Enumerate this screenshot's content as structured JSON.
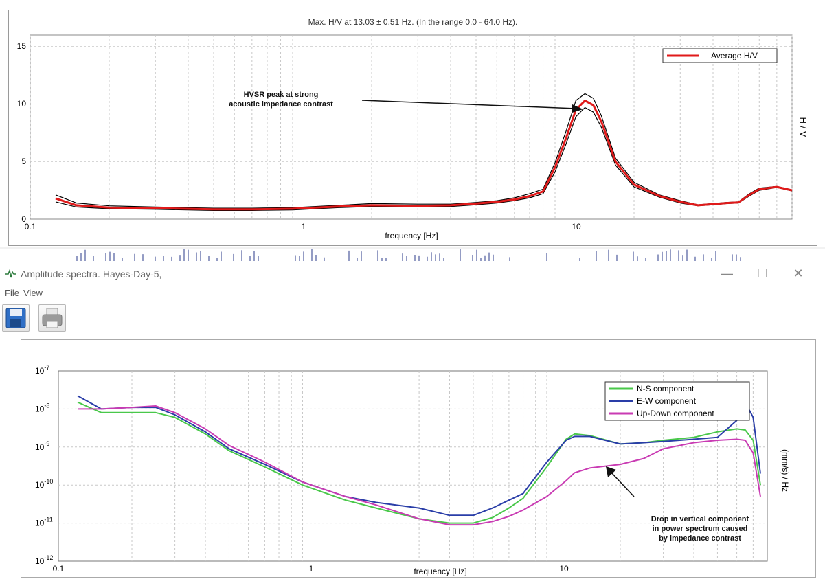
{
  "hv_chart": {
    "title": "Max. H/V at 13.03 ± 0.51 Hz. (In the range 0.0 - 64.0 Hz).",
    "xlabel": "frequency [Hz]",
    "ylabel": "H / V",
    "legend": "Average H/V",
    "annotation": [
      "HVSR  peak at strong",
      "acoustic impedance contrast"
    ],
    "x_ticks": [
      "0.1",
      "1",
      "10"
    ],
    "y_ticks": [
      "0",
      "5",
      "10",
      "15"
    ]
  },
  "window": {
    "title": "Amplitude spectra. Hayes-Day-5,",
    "minimize": "—",
    "maximize": "☐",
    "close": "✕"
  },
  "menu": {
    "file": "File",
    "view": "View"
  },
  "toolbar": {
    "save": "save-icon",
    "print": "print-icon"
  },
  "spectra_chart": {
    "xlabel": "frequency [Hz]",
    "ylabel": "(mm/s) / Hz",
    "x_ticks": [
      "0.1",
      "1",
      "10"
    ],
    "y_ticks": [
      {
        "base": "10",
        "exp": "-7"
      },
      {
        "base": "10",
        "exp": "-8"
      },
      {
        "base": "10",
        "exp": "-9"
      },
      {
        "base": "10",
        "exp": "-10"
      },
      {
        "base": "10",
        "exp": "-11"
      },
      {
        "base": "10",
        "exp": "-12"
      }
    ],
    "annotation": [
      "Drop in vertical component",
      "in power spectrum caused",
      "by impedance contrast"
    ],
    "legend": [
      "N-S component",
      "E-W component",
      "Up-Down component"
    ]
  },
  "chart_data": [
    {
      "type": "line",
      "title": "Max. H/V at 13.03 ± 0.51 Hz. (In the range 0.0 - 64.0 Hz).",
      "xlabel": "frequency [Hz]",
      "ylabel": "H / V",
      "xscale": "log",
      "xlim": [
        0.1,
        80
      ],
      "ylim": [
        0,
        16
      ],
      "grid": true,
      "legend_position": "top-right",
      "x": [
        0.125,
        0.15,
        0.2,
        0.3,
        0.5,
        0.7,
        1,
        1.5,
        2,
        3,
        4,
        5,
        6,
        7,
        8,
        9,
        10,
        11,
        12,
        13,
        14,
        15,
        17,
        20,
        25,
        30,
        35,
        40,
        45,
        50,
        55,
        60,
        70,
        80
      ],
      "series": [
        {
          "name": "Average H/V",
          "color": "#e01a1a",
          "values": [
            1.8,
            1.2,
            1.0,
            0.95,
            0.85,
            0.85,
            0.9,
            1.1,
            1.2,
            1.15,
            1.2,
            1.35,
            1.5,
            1.7,
            2.0,
            2.4,
            4.5,
            7.0,
            9.5,
            10.3,
            9.9,
            8.5,
            5.0,
            3.0,
            2.0,
            1.5,
            1.2,
            1.3,
            1.4,
            1.45,
            2.1,
            2.6,
            2.8,
            2.5
          ]
        },
        {
          "color": "#000000",
          "values": [
            2.1,
            1.4,
            1.15,
            1.05,
            0.95,
            0.95,
            1.0,
            1.2,
            1.35,
            1.3,
            1.3,
            1.45,
            1.6,
            1.85,
            2.2,
            2.6,
            4.9,
            7.6,
            10.3,
            10.9,
            10.5,
            9.0,
            5.3,
            3.2,
            2.1,
            1.6,
            1.25,
            1.35,
            1.45,
            1.5,
            2.2,
            2.7,
            2.85,
            2.55
          ]
        },
        {
          "color": "#000000",
          "values": [
            1.5,
            1.05,
            0.9,
            0.85,
            0.75,
            0.75,
            0.8,
            1.0,
            1.1,
            1.05,
            1.1,
            1.25,
            1.4,
            1.6,
            1.85,
            2.2,
            4.1,
            6.5,
            8.9,
            9.7,
            9.3,
            8.0,
            4.7,
            2.8,
            1.9,
            1.4,
            1.15,
            1.25,
            1.35,
            1.4,
            2.0,
            2.5,
            2.75,
            2.45
          ]
        }
      ]
    },
    {
      "type": "line",
      "xlabel": "frequency [Hz]",
      "ylabel": "(mm/s) / Hz",
      "xscale": "log",
      "yscale": "log",
      "xlim": [
        0.1,
        80
      ],
      "ylim": [
        1e-12,
        1e-07
      ],
      "legend_position": "top-right",
      "x": [
        0.12,
        0.15,
        0.2,
        0.25,
        0.3,
        0.4,
        0.5,
        0.7,
        1,
        1.5,
        2,
        3,
        4,
        5,
        6,
        7,
        8,
        10,
        12,
        13,
        15,
        20,
        25,
        30,
        40,
        50,
        60,
        65,
        70,
        75
      ],
      "series": [
        {
          "name": "N-S component",
          "color": "#49c84a",
          "values": [
            1.5e-08,
            8e-09,
            8e-09,
            8e-09,
            6e-09,
            2.2e-09,
            8e-10,
            3e-10,
            1e-10,
            4e-11,
            2.5e-11,
            1.3e-11,
            1e-11,
            1e-11,
            1.4e-11,
            2.5e-11,
            4.5e-11,
            3e-10,
            1.6e-09,
            2.2e-09,
            2e-09,
            1.2e-09,
            1.3e-09,
            1.5e-09,
            1.8e-09,
            2.5e-09,
            3e-09,
            2.8e-09,
            1.5e-09,
            1e-10
          ]
        },
        {
          "name": "E-W component",
          "color": "#2a3ea8",
          "values": [
            2.2e-08,
            1e-08,
            1.1e-08,
            1.1e-08,
            7e-09,
            2.5e-09,
            9e-10,
            3.5e-10,
            1.2e-10,
            5e-11,
            3.5e-11,
            2.5e-11,
            1.6e-11,
            1.6e-11,
            2.5e-11,
            4e-11,
            6e-11,
            4e-10,
            1.5e-09,
            1.9e-09,
            1.9e-09,
            1.2e-09,
            1.3e-09,
            1.4e-09,
            1.6e-09,
            1.8e-09,
            5e-09,
            1.5e-08,
            6e-09,
            2e-10
          ]
        },
        {
          "name": "Up-Down component",
          "color": "#c93bb3",
          "values": [
            1e-08,
            1e-08,
            1.1e-08,
            1.2e-08,
            8e-09,
            3e-09,
            1.1e-09,
            4e-10,
            1.2e-10,
            5e-11,
            3e-11,
            1.3e-11,
            9e-12,
            9e-12,
            1.1e-11,
            1.5e-11,
            2.2e-11,
            5e-11,
            1.3e-10,
            2.1e-10,
            2.8e-10,
            3.5e-10,
            5e-10,
            9e-10,
            1.3e-09,
            1.5e-09,
            1.6e-09,
            1.5e-09,
            7e-10,
            5e-11
          ]
        }
      ]
    }
  ]
}
